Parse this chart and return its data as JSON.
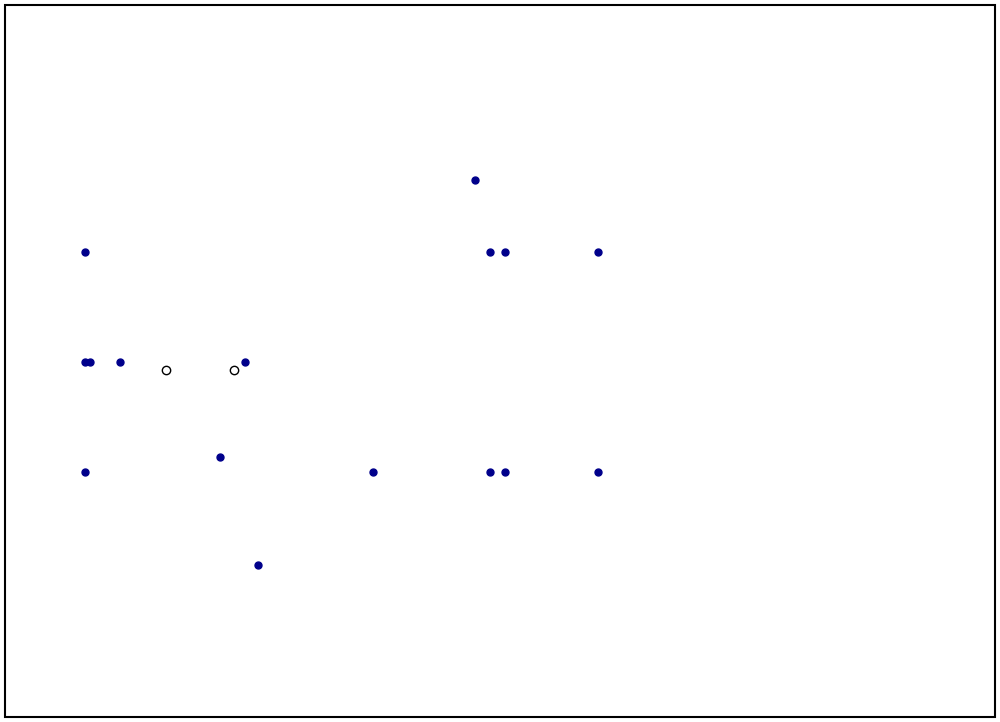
{
  "bg": "#ffffff",
  "lc": "#000000",
  "dc": "#00008B",
  "lw": 1.3,
  "fig_w": 10.0,
  "fig_h": 7.22
}
